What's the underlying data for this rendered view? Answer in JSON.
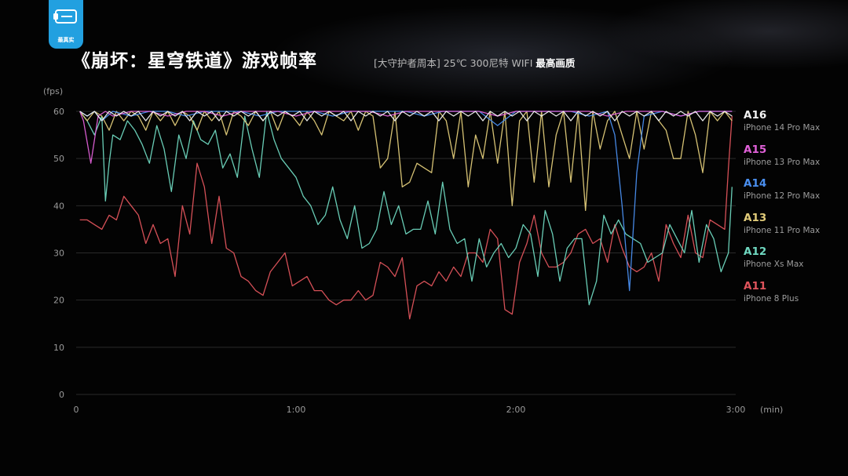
{
  "logo": {
    "text": "最真实"
  },
  "header": {
    "title": "《崩坏：星穹铁道》游戏帧率",
    "conditions": "[大守护者周本] 25℃ 300尼特 WIFI",
    "quality": "最高画质"
  },
  "colors": {
    "background": "#030303",
    "grid": "#2a2a2a",
    "axis_text": "#9a9a9a",
    "logo": "#22a0e0"
  },
  "chart_data": {
    "type": "line",
    "ylabel": "(fps)",
    "xlabel": "(min)",
    "ylim": [
      0,
      60
    ],
    "xlim": [
      0,
      180
    ],
    "y_ticks": [
      0,
      10,
      20,
      30,
      40,
      50,
      60
    ],
    "x_ticks": [
      {
        "value": 0,
        "label": "0"
      },
      {
        "value": 60,
        "label": "1:00"
      },
      {
        "value": 120,
        "label": "2:00"
      },
      {
        "value": 180,
        "label": "3:00"
      }
    ],
    "grid": "horizontal",
    "legend_position": "right",
    "series": [
      {
        "name": "A16",
        "device": "iPhone 14 Pro Max",
        "color": "#f2f2f2",
        "x": [
          1,
          3,
          5,
          7,
          9,
          11,
          13,
          15,
          17,
          19,
          21,
          23,
          25,
          27,
          29,
          31,
          33,
          35,
          37,
          39,
          41,
          43,
          45,
          47,
          49,
          51,
          53,
          55,
          57,
          59,
          61,
          63,
          65,
          67,
          69,
          71,
          73,
          75,
          77,
          79,
          81,
          83,
          85,
          87,
          89,
          91,
          93,
          95,
          97,
          99,
          101,
          103,
          105,
          107,
          109,
          111,
          113,
          115,
          117,
          119,
          121,
          123,
          125,
          127,
          129,
          131,
          133,
          135,
          137,
          139,
          141,
          143,
          145,
          147,
          149,
          151,
          153,
          155,
          157,
          159,
          161,
          163,
          165,
          167,
          169,
          171,
          173,
          175,
          177,
          179
        ],
        "y": [
          60,
          59,
          60,
          58,
          60,
          59,
          60,
          59,
          60,
          58,
          60,
          59,
          60,
          59,
          60,
          58,
          60,
          59,
          60,
          58,
          60,
          59,
          60,
          59,
          60,
          58,
          60,
          59,
          60,
          59,
          60,
          58,
          60,
          59,
          60,
          59,
          60,
          58,
          60,
          59,
          60,
          59,
          60,
          58,
          60,
          59,
          60,
          59,
          60,
          58,
          60,
          59,
          60,
          59,
          60,
          58,
          60,
          59,
          60,
          59,
          60,
          58,
          60,
          59,
          60,
          59,
          60,
          58,
          60,
          59,
          60,
          59,
          60,
          58,
          60,
          59,
          60,
          59,
          60,
          58,
          60,
          59,
          60,
          59,
          60,
          58,
          60,
          59,
          60,
          59
        ]
      },
      {
        "name": "A15",
        "device": "iPhone 13 Pro Max",
        "color": "#e060d8",
        "x": [
          1,
          2,
          4,
          6,
          8,
          10,
          15,
          20,
          25,
          30,
          35,
          40,
          45,
          50,
          55,
          60,
          65,
          70,
          75,
          80,
          85,
          90,
          95,
          100,
          105,
          110,
          115,
          120,
          125,
          130,
          135,
          140,
          145,
          150,
          155,
          160,
          165,
          170,
          175,
          179
        ],
        "y": [
          60,
          58,
          49,
          59,
          60,
          59,
          60,
          60,
          59,
          60,
          60,
          59,
          60,
          60,
          60,
          59,
          60,
          60,
          60,
          60,
          59,
          60,
          60,
          60,
          60,
          60,
          59,
          60,
          60,
          60,
          60,
          60,
          59,
          60,
          60,
          60,
          59,
          60,
          60,
          60
        ]
      },
      {
        "name": "A14",
        "device": "iPhone 12 Pro Max",
        "color": "#4a8ff0",
        "x": [
          1,
          3,
          5,
          7,
          10,
          15,
          20,
          25,
          30,
          35,
          40,
          45,
          50,
          55,
          60,
          65,
          70,
          75,
          80,
          85,
          90,
          95,
          100,
          105,
          110,
          115,
          120,
          125,
          130,
          135,
          140,
          145,
          147,
          149,
          151,
          153,
          155,
          160,
          165,
          170,
          175,
          179
        ],
        "y": [
          60,
          59,
          60,
          58,
          60,
          59,
          60,
          60,
          59,
          60,
          60,
          60,
          59,
          60,
          60,
          60,
          59,
          60,
          60,
          60,
          60,
          59,
          60,
          60,
          60,
          57,
          60,
          60,
          60,
          60,
          59,
          60,
          55,
          40,
          22,
          47,
          59,
          60,
          59,
          60,
          60,
          60
        ]
      },
      {
        "name": "A13",
        "device": "iPhone 11 Pro Max",
        "color": "#e2cc7a",
        "x": [
          1,
          3,
          5,
          7,
          9,
          11,
          13,
          15,
          17,
          19,
          21,
          23,
          25,
          27,
          29,
          31,
          33,
          35,
          37,
          39,
          41,
          43,
          45,
          47,
          49,
          51,
          53,
          55,
          57,
          59,
          61,
          63,
          65,
          67,
          69,
          71,
          73,
          75,
          77,
          79,
          81,
          83,
          85,
          87,
          89,
          91,
          93,
          95,
          97,
          99,
          101,
          103,
          105,
          107,
          109,
          111,
          113,
          115,
          117,
          119,
          121,
          123,
          125,
          127,
          129,
          131,
          133,
          135,
          137,
          139,
          141,
          143,
          145,
          147,
          149,
          151,
          153,
          155,
          157,
          159,
          161,
          163,
          165,
          167,
          169,
          171,
          173,
          175,
          177,
          179
        ],
        "y": [
          60,
          58,
          60,
          59,
          56,
          60,
          58,
          60,
          59,
          56,
          60,
          58,
          60,
          57,
          60,
          59,
          56,
          60,
          58,
          60,
          55,
          60,
          59,
          57,
          60,
          58,
          60,
          56,
          60,
          59,
          57,
          60,
          58,
          55,
          60,
          59,
          58,
          60,
          56,
          60,
          59,
          48,
          50,
          60,
          44,
          45,
          49,
          48,
          47,
          60,
          58,
          50,
          60,
          44,
          55,
          50,
          60,
          49,
          60,
          40,
          58,
          60,
          45,
          60,
          44,
          55,
          60,
          45,
          60,
          39,
          60,
          52,
          58,
          60,
          55,
          50,
          60,
          52,
          60,
          58,
          56,
          50,
          50,
          60,
          55,
          47,
          60,
          58,
          60,
          58
        ]
      },
      {
        "name": "A12",
        "device": "iPhone Xs Max",
        "color": "#6fd8c0",
        "x": [
          1,
          3,
          5,
          7,
          8,
          9,
          10,
          12,
          14,
          16,
          18,
          20,
          22,
          24,
          26,
          28,
          30,
          32,
          34,
          36,
          38,
          40,
          42,
          44,
          46,
          48,
          50,
          52,
          54,
          56,
          58,
          60,
          62,
          64,
          66,
          68,
          70,
          72,
          74,
          76,
          78,
          80,
          82,
          84,
          86,
          88,
          90,
          92,
          94,
          96,
          98,
          100,
          102,
          104,
          106,
          108,
          110,
          112,
          114,
          116,
          118,
          120,
          122,
          124,
          126,
          128,
          130,
          132,
          134,
          136,
          138,
          140,
          142,
          144,
          146,
          148,
          150,
          152,
          154,
          156,
          158,
          160,
          162,
          164,
          166,
          168,
          170,
          172,
          174,
          176,
          178,
          179
        ],
        "y": [
          60,
          58,
          55,
          59,
          41,
          49,
          55,
          54,
          58,
          56,
          53,
          49,
          57,
          52,
          43,
          55,
          50,
          58,
          54,
          53,
          56,
          48,
          51,
          46,
          59,
          52,
          46,
          60,
          54,
          50,
          48,
          46,
          42,
          40,
          36,
          38,
          44,
          37,
          33,
          40,
          31,
          32,
          35,
          43,
          36,
          40,
          34,
          35,
          35,
          41,
          34,
          45,
          35,
          32,
          33,
          24,
          33,
          27,
          30,
          32,
          29,
          31,
          36,
          34,
          25,
          39,
          34,
          24,
          31,
          33,
          33,
          19,
          24,
          38,
          34,
          37,
          34,
          33,
          32,
          28,
          29,
          30,
          36,
          33,
          30,
          39,
          28,
          36,
          33,
          26,
          30,
          44
        ]
      },
      {
        "name": "A11",
        "device": "iPhone 8 Plus",
        "color": "#e0545c",
        "x": [
          1,
          3,
          5,
          7,
          9,
          11,
          13,
          15,
          17,
          19,
          21,
          23,
          25,
          27,
          29,
          31,
          33,
          35,
          37,
          39,
          41,
          43,
          45,
          47,
          49,
          51,
          53,
          55,
          57,
          59,
          61,
          63,
          65,
          67,
          69,
          71,
          73,
          75,
          77,
          79,
          81,
          83,
          85,
          87,
          89,
          91,
          93,
          95,
          97,
          99,
          101,
          103,
          105,
          107,
          109,
          111,
          113,
          115,
          117,
          119,
          121,
          123,
          125,
          127,
          129,
          131,
          133,
          135,
          137,
          139,
          141,
          143,
          145,
          147,
          149,
          151,
          153,
          155,
          157,
          159,
          161,
          163,
          165,
          167,
          169,
          171,
          173,
          175,
          177,
          178,
          179
        ],
        "y": [
          37,
          37,
          36,
          35,
          38,
          37,
          42,
          40,
          38,
          32,
          36,
          32,
          33,
          25,
          40,
          34,
          49,
          44,
          32,
          42,
          31,
          30,
          25,
          24,
          22,
          21,
          26,
          28,
          30,
          23,
          24,
          25,
          22,
          22,
          20,
          19,
          20,
          20,
          22,
          20,
          21,
          28,
          27,
          25,
          29,
          16,
          23,
          24,
          23,
          26,
          24,
          27,
          25,
          30,
          30,
          28,
          35,
          33,
          18,
          17,
          28,
          32,
          38,
          30,
          27,
          27,
          28,
          30,
          34,
          35,
          32,
          33,
          28,
          36,
          31,
          27,
          26,
          27,
          30,
          24,
          36,
          32,
          29,
          38,
          30,
          29,
          37,
          36,
          35,
          48,
          59
        ]
      }
    ]
  }
}
